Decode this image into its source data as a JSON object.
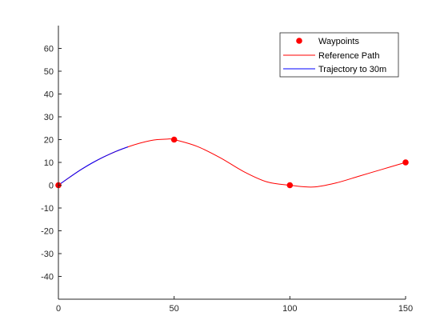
{
  "chart_data": {
    "type": "line",
    "title": "",
    "xlabel": "",
    "ylabel": "",
    "xlim": [
      0,
      150
    ],
    "ylim": [
      -50,
      70
    ],
    "x_ticks": [
      0,
      50,
      100,
      150
    ],
    "y_ticks": [
      -40,
      -30,
      -20,
      -10,
      0,
      10,
      20,
      30,
      40,
      50,
      60
    ],
    "grid": false,
    "legend_position": "top-right",
    "series": [
      {
        "name": "Waypoints",
        "style": "markers",
        "color": "#ff0000",
        "x": [
          0,
          50,
          100,
          150
        ],
        "y": [
          0,
          20,
          0,
          10
        ]
      },
      {
        "name": "Reference Path",
        "style": "line",
        "color": "#ff0000",
        "x": [
          0,
          10,
          20,
          30,
          40,
          47,
          50,
          60,
          70,
          80,
          90,
          100,
          110,
          120,
          130,
          140,
          150
        ],
        "y": [
          0,
          7,
          12.6,
          16.8,
          19.6,
          20.2,
          20,
          17,
          12,
          6,
          1.5,
          0,
          -0.8,
          1,
          4,
          7,
          10
        ]
      },
      {
        "name": "Trajectory to 30m",
        "style": "line",
        "color": "#0000ff",
        "x": [
          0,
          5,
          10,
          15,
          20,
          25,
          30
        ],
        "y": [
          0,
          3.6,
          7,
          10,
          12.6,
          14.9,
          16.8
        ]
      }
    ]
  }
}
